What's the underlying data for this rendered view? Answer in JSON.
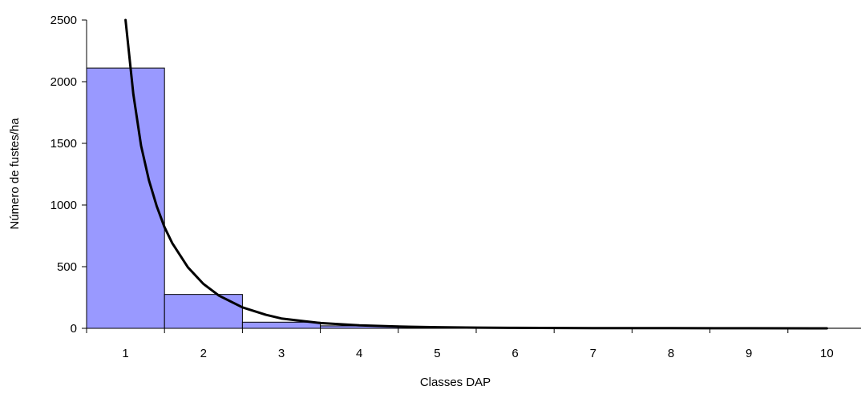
{
  "chart_data": {
    "type": "bar",
    "xlabel": "Classes DAP",
    "ylabel": "Número de fustes/ha",
    "ylim": [
      0,
      2500
    ],
    "yticks": [
      "0",
      "500",
      "1000",
      "1500",
      "2000",
      "2500"
    ],
    "categories": [
      "1",
      "2",
      "3",
      "4",
      "5",
      "6",
      "7",
      "8",
      "9",
      "10"
    ],
    "values": [
      2110,
      275,
      50,
      20,
      10,
      5,
      3,
      2,
      1,
      1
    ],
    "bar_color": "#9999ff",
    "bar_stroke": "#000000",
    "curve_color": "#000000",
    "curve": {
      "x": [
        1.0,
        1.1,
        1.2,
        1.3,
        1.4,
        1.5,
        1.6,
        1.8,
        2.0,
        2.2,
        2.5,
        2.8,
        3.0,
        3.5,
        4.0,
        4.5,
        5.0,
        5.5,
        6.0,
        7.0,
        8.0,
        9.0,
        10.0
      ],
      "y": [
        2500,
        1900,
        1480,
        1200,
        990,
        820,
        690,
        495,
        360,
        265,
        170,
        110,
        80,
        43,
        24,
        14,
        9,
        6,
        4,
        2,
        1,
        0.5,
        0.3
      ]
    }
  }
}
